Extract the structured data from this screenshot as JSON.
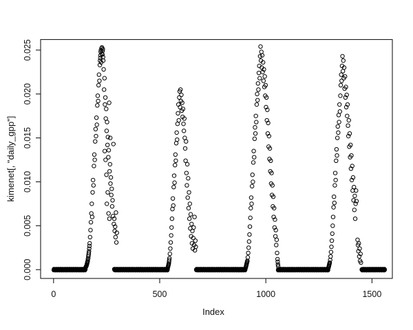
{
  "chart_data": {
    "type": "scatter",
    "title": "",
    "xlabel": "Index",
    "ylabel": "kimenet[, \"daily_gpp\"]",
    "marker": "open-circle",
    "point_color": "#000000",
    "axis_color": "#1a1a1a",
    "background": "#ffffff",
    "grid": false,
    "legend": null,
    "xlim": [
      -61,
      1596
    ],
    "ylim": [
      -0.001,
      0.0262
    ],
    "x_ticks": [
      0,
      500,
      1000,
      1500
    ],
    "x_tick_labels": [
      "0",
      "500",
      "1000",
      "1500"
    ],
    "y_ticks": [
      0,
      0.005,
      0.01,
      0.015,
      0.02,
      0.025
    ],
    "y_tick_labels": [
      "0.000",
      "0.005",
      "0.010",
      "0.015",
      "0.020",
      "0.025"
    ],
    "zero_runs": [
      [
        1,
        150
      ],
      [
        286,
        537
      ],
      [
        672,
        903
      ],
      [
        1058,
        1293
      ],
      [
        1452,
        1560
      ]
    ],
    "points": [
      [
        150,
        0.0002
      ],
      [
        151,
        0.00025
      ],
      [
        152,
        0.0003
      ],
      [
        153,
        0.00035
      ],
      [
        154,
        0.0004
      ],
      [
        155,
        0.00045
      ],
      [
        156,
        0.0005
      ],
      [
        157,
        0.0006
      ],
      [
        158,
        0.0007
      ],
      [
        159,
        0.0008
      ],
      [
        160,
        0.0009
      ],
      [
        161,
        0.001
      ],
      [
        162,
        0.0012
      ],
      [
        163,
        0.0013
      ],
      [
        164,
        0.0015
      ],
      [
        165,
        0.0017
      ],
      [
        166,
        0.0019
      ],
      [
        167,
        0.0021
      ],
      [
        168,
        0.0024
      ],
      [
        169,
        0.0027
      ],
      [
        170,
        0.003
      ],
      [
        172,
        0.0037
      ],
      [
        174,
        0.0045
      ],
      [
        176,
        0.0054
      ],
      [
        178,
        0.0064
      ],
      [
        180,
        0.0075
      ],
      [
        182,
        0.006
      ],
      [
        184,
        0.0088
      ],
      [
        186,
        0.0102
      ],
      [
        188,
        0.0096
      ],
      [
        190,
        0.0118
      ],
      [
        192,
        0.0131
      ],
      [
        194,
        0.0125
      ],
      [
        196,
        0.0146
      ],
      [
        198,
        0.016
      ],
      [
        200,
        0.0152
      ],
      [
        202,
        0.0173
      ],
      [
        204,
        0.0165
      ],
      [
        206,
        0.0187
      ],
      [
        208,
        0.0198
      ],
      [
        210,
        0.0192
      ],
      [
        212,
        0.021
      ],
      [
        214,
        0.0222
      ],
      [
        216,
        0.0215
      ],
      [
        218,
        0.0233
      ],
      [
        219,
        0.0238
      ],
      [
        220,
        0.0241
      ],
      [
        221,
        0.0244
      ],
      [
        222,
        0.0248
      ],
      [
        223,
        0.025
      ],
      [
        224,
        0.0236
      ],
      [
        226,
        0.0252
      ],
      [
        227,
        0.0246
      ],
      [
        228,
        0.0253
      ],
      [
        230,
        0.0245
      ],
      [
        231,
        0.0249
      ],
      [
        232,
        0.0251
      ],
      [
        233,
        0.0242
      ],
      [
        234,
        0.0238
      ],
      [
        236,
        0.0228
      ],
      [
        238,
        0.0205
      ],
      [
        240,
        0.0218
      ],
      [
        241,
        0.0135
      ],
      [
        242,
        0.0188
      ],
      [
        244,
        0.0196
      ],
      [
        245,
        0.0125
      ],
      [
        246,
        0.0172
      ],
      [
        248,
        0.0183
      ],
      [
        249,
        0.0108
      ],
      [
        250,
        0.0158
      ],
      [
        251,
        0.0075
      ],
      [
        252,
        0.0168
      ],
      [
        254,
        0.0142
      ],
      [
        255,
        0.0088
      ],
      [
        256,
        0.0151
      ],
      [
        258,
        0.0128
      ],
      [
        259,
        0.0064
      ],
      [
        260,
        0.0136
      ],
      [
        262,
        0.019
      ],
      [
        263,
        0.0058
      ],
      [
        264,
        0.0112
      ],
      [
        266,
        0.012
      ],
      [
        267,
        0.015
      ],
      [
        268,
        0.0098
      ],
      [
        270,
        0.0105
      ],
      [
        272,
        0.0085
      ],
      [
        274,
        0.0092
      ],
      [
        276,
        0.0072
      ],
      [
        278,
        0.0079
      ],
      [
        280,
        0.0061
      ],
      [
        282,
        0.0143
      ],
      [
        284,
        0.0052
      ],
      [
        286,
        0.0058
      ],
      [
        288,
        0.0044
      ],
      [
        290,
        0.0049
      ],
      [
        292,
        0.0037
      ],
      [
        294,
        0.0065
      ],
      [
        296,
        0.0031
      ],
      [
        298,
        0.0042
      ],
      [
        538,
        0.0002
      ],
      [
        539,
        0.0003
      ],
      [
        540,
        0.0004
      ],
      [
        541,
        0.0005
      ],
      [
        542,
        0.0006
      ],
      [
        543,
        0.0007
      ],
      [
        544,
        0.0009
      ],
      [
        545,
        0.0011
      ],
      [
        546,
        0.0013
      ],
      [
        548,
        0.0018
      ],
      [
        550,
        0.0024
      ],
      [
        552,
        0.0031
      ],
      [
        554,
        0.0039
      ],
      [
        556,
        0.0048
      ],
      [
        558,
        0.0058
      ],
      [
        560,
        0.0069
      ],
      [
        562,
        0.0081
      ],
      [
        564,
        0.0073
      ],
      [
        566,
        0.0094
      ],
      [
        568,
        0.0107
      ],
      [
        570,
        0.0099
      ],
      [
        572,
        0.0119
      ],
      [
        574,
        0.0131
      ],
      [
        576,
        0.0124
      ],
      [
        578,
        0.0144
      ],
      [
        580,
        0.0156
      ],
      [
        582,
        0.0148
      ],
      [
        584,
        0.0166
      ],
      [
        586,
        0.0178
      ],
      [
        588,
        0.0188
      ],
      [
        590,
        0.017
      ],
      [
        592,
        0.0196
      ],
      [
        594,
        0.0203
      ],
      [
        596,
        0.0185
      ],
      [
        598,
        0.0205
      ],
      [
        600,
        0.0192
      ],
      [
        602,
        0.0199
      ],
      [
        604,
        0.0181
      ],
      [
        606,
        0.019
      ],
      [
        608,
        0.0174
      ],
      [
        610,
        0.0183
      ],
      [
        612,
        0.0166
      ],
      [
        614,
        0.0158
      ],
      [
        616,
        0.0172
      ],
      [
        618,
        0.015
      ],
      [
        620,
        0.0138
      ],
      [
        622,
        0.0124
      ],
      [
        624,
        0.0146
      ],
      [
        626,
        0.011
      ],
      [
        628,
        0.0096
      ],
      [
        630,
        0.012
      ],
      [
        632,
        0.0082
      ],
      [
        634,
        0.0104
      ],
      [
        636,
        0.007
      ],
      [
        638,
        0.0088
      ],
      [
        640,
        0.0058
      ],
      [
        642,
        0.0075
      ],
      [
        644,
        0.0047
      ],
      [
        646,
        0.0063
      ],
      [
        648,
        0.0038
      ],
      [
        650,
        0.0052
      ],
      [
        652,
        0.003
      ],
      [
        654,
        0.0044
      ],
      [
        656,
        0.0024
      ],
      [
        658,
        0.0036
      ],
      [
        660,
        0.0048
      ],
      [
        662,
        0.0028
      ],
      [
        664,
        0.006
      ],
      [
        666,
        0.0022
      ],
      [
        668,
        0.0033
      ],
      [
        670,
        0.0026
      ],
      [
        905,
        0.0002
      ],
      [
        906,
        0.0003
      ],
      [
        907,
        0.0004
      ],
      [
        908,
        0.0005
      ],
      [
        909,
        0.0006
      ],
      [
        910,
        0.0007
      ],
      [
        911,
        0.0008
      ],
      [
        912,
        0.0009
      ],
      [
        913,
        0.001
      ],
      [
        915,
        0.0014
      ],
      [
        917,
        0.0019
      ],
      [
        919,
        0.0025
      ],
      [
        921,
        0.0032
      ],
      [
        923,
        0.004
      ],
      [
        925,
        0.0049
      ],
      [
        927,
        0.0059
      ],
      [
        929,
        0.007
      ],
      [
        931,
        0.0082
      ],
      [
        933,
        0.0075
      ],
      [
        935,
        0.0095
      ],
      [
        937,
        0.0108
      ],
      [
        939,
        0.01
      ],
      [
        941,
        0.0122
      ],
      [
        943,
        0.0135
      ],
      [
        945,
        0.0128
      ],
      [
        947,
        0.0149
      ],
      [
        949,
        0.0162
      ],
      [
        951,
        0.0155
      ],
      [
        953,
        0.0175
      ],
      [
        955,
        0.0168
      ],
      [
        957,
        0.0188
      ],
      [
        959,
        0.02
      ],
      [
        961,
        0.0193
      ],
      [
        963,
        0.0212
      ],
      [
        965,
        0.0205
      ],
      [
        967,
        0.0224
      ],
      [
        969,
        0.0232
      ],
      [
        971,
        0.0218
      ],
      [
        973,
        0.0243
      ],
      [
        975,
        0.0254
      ],
      [
        977,
        0.0238
      ],
      [
        979,
        0.0248
      ],
      [
        981,
        0.023
      ],
      [
        983,
        0.0244
      ],
      [
        985,
        0.0225
      ],
      [
        987,
        0.0236
      ],
      [
        989,
        0.0215
      ],
      [
        991,
        0.0228
      ],
      [
        993,
        0.0208
      ],
      [
        995,
        0.022
      ],
      [
        997,
        0.0198
      ],
      [
        999,
        0.021
      ],
      [
        1001,
        0.0185
      ],
      [
        1003,
        0.0196
      ],
      [
        1005,
        0.017
      ],
      [
        1007,
        0.0182
      ],
      [
        1009,
        0.0155
      ],
      [
        1011,
        0.0167
      ],
      [
        1013,
        0.014
      ],
      [
        1015,
        0.0152
      ],
      [
        1017,
        0.0126
      ],
      [
        1019,
        0.0138
      ],
      [
        1021,
        0.0112
      ],
      [
        1023,
        0.0124
      ],
      [
        1025,
        0.0098
      ],
      [
        1027,
        0.011
      ],
      [
        1029,
        0.0085
      ],
      [
        1031,
        0.0096
      ],
      [
        1033,
        0.0072
      ],
      [
        1035,
        0.0083
      ],
      [
        1037,
        0.006
      ],
      [
        1039,
        0.007
      ],
      [
        1041,
        0.0048
      ],
      [
        1043,
        0.0057
      ],
      [
        1045,
        0.0038
      ],
      [
        1047,
        0.0045
      ],
      [
        1049,
        0.0028
      ],
      [
        1051,
        0.0034
      ],
      [
        1053,
        0.0019
      ],
      [
        1055,
        0.0012
      ],
      [
        1056,
        0.0009
      ],
      [
        1057,
        0.0006
      ],
      [
        1058,
        0.0004
      ],
      [
        1295,
        0.0002
      ],
      [
        1296,
        0.0003
      ],
      [
        1297,
        0.0004
      ],
      [
        1298,
        0.0005
      ],
      [
        1299,
        0.0006
      ],
      [
        1300,
        0.0007
      ],
      [
        1301,
        0.0008
      ],
      [
        1303,
        0.0011
      ],
      [
        1305,
        0.0015
      ],
      [
        1307,
        0.002
      ],
      [
        1309,
        0.0026
      ],
      [
        1311,
        0.0033
      ],
      [
        1313,
        0.0041
      ],
      [
        1315,
        0.005
      ],
      [
        1317,
        0.006
      ],
      [
        1319,
        0.0071
      ],
      [
        1321,
        0.0083
      ],
      [
        1323,
        0.0076
      ],
      [
        1325,
        0.0096
      ],
      [
        1327,
        0.011
      ],
      [
        1329,
        0.0102
      ],
      [
        1331,
        0.0124
      ],
      [
        1333,
        0.0137
      ],
      [
        1335,
        0.013
      ],
      [
        1337,
        0.015
      ],
      [
        1339,
        0.0163
      ],
      [
        1341,
        0.0156
      ],
      [
        1343,
        0.0176
      ],
      [
        1345,
        0.0168
      ],
      [
        1347,
        0.0188
      ],
      [
        1349,
        0.018
      ],
      [
        1351,
        0.0198
      ],
      [
        1353,
        0.021
      ],
      [
        1355,
        0.0222
      ],
      [
        1357,
        0.0215
      ],
      [
        1359,
        0.0232
      ],
      [
        1361,
        0.0243
      ],
      [
        1363,
        0.0226
      ],
      [
        1365,
        0.0238
      ],
      [
        1367,
        0.0218
      ],
      [
        1369,
        0.023
      ],
      [
        1371,
        0.0206
      ],
      [
        1373,
        0.022
      ],
      [
        1375,
        0.0196
      ],
      [
        1377,
        0.0208
      ],
      [
        1379,
        0.0185
      ],
      [
        1381,
        0.0199
      ],
      [
        1383,
        0.0175
      ],
      [
        1385,
        0.0188
      ],
      [
        1387,
        0.0164
      ],
      [
        1389,
        0.0152
      ],
      [
        1391,
        0.017
      ],
      [
        1393,
        0.014
      ],
      [
        1395,
        0.0155
      ],
      [
        1397,
        0.0128
      ],
      [
        1399,
        0.0142
      ],
      [
        1401,
        0.0115
      ],
      [
        1403,
        0.013
      ],
      [
        1405,
        0.0102
      ],
      [
        1407,
        0.0118
      ],
      [
        1409,
        0.009
      ],
      [
        1411,
        0.0105
      ],
      [
        1413,
        0.0079
      ],
      [
        1415,
        0.0094
      ],
      [
        1417,
        0.0068
      ],
      [
        1419,
        0.0084
      ],
      [
        1421,
        0.0058
      ],
      [
        1423,
        0.0075
      ],
      [
        1425,
        0.009
      ],
      [
        1427,
        0.0078
      ],
      [
        1432,
        0.0034
      ],
      [
        1434,
        0.0028
      ],
      [
        1436,
        0.0021
      ],
      [
        1438,
        0.003
      ],
      [
        1440,
        0.0015
      ],
      [
        1442,
        0.0024
      ],
      [
        1444,
        0.001
      ],
      [
        1446,
        0.0018
      ],
      [
        1448,
        0.0008
      ]
    ]
  }
}
